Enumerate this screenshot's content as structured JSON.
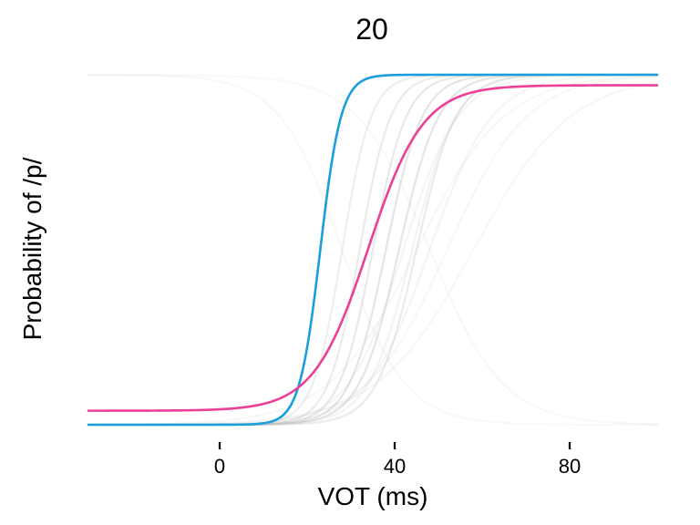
{
  "chart_data": {
    "type": "line",
    "title": "20",
    "xlabel": "VOT (ms)",
    "ylabel": "Probability of /p/",
    "xlim": [
      -30,
      100
    ],
    "ylim": [
      0,
      1
    ],
    "xticks": [
      0,
      40,
      80
    ],
    "yticks": [],
    "grid": false,
    "legend": "none",
    "series": [
      {
        "role": "background",
        "color": "#bdbdbd",
        "opacity": 0.1,
        "lower": 0.0,
        "upper": 1.0,
        "midpoint": 28,
        "slope": -0.14
      },
      {
        "role": "background",
        "color": "#bdbdbd",
        "opacity": 0.1,
        "lower": 0.0,
        "upper": 1.0,
        "midpoint": 48,
        "slope": -0.12
      },
      {
        "role": "background",
        "color": "#bdbdbd",
        "opacity": 0.12,
        "lower": 0.0,
        "upper": 1.0,
        "midpoint": 45,
        "slope": 0.1
      },
      {
        "role": "background",
        "color": "#bdbdbd",
        "opacity": 0.12,
        "lower": 0.0,
        "upper": 1.0,
        "midpoint": 52,
        "slope": 0.11
      },
      {
        "role": "background",
        "color": "#bdbdbd",
        "opacity": 0.12,
        "lower": 0.0,
        "upper": 1.0,
        "midpoint": 58,
        "slope": 0.09
      },
      {
        "role": "background",
        "color": "#bdbdbd",
        "opacity": 0.15,
        "lower": 0.0,
        "upper": 1.0,
        "midpoint": 42,
        "slope": 0.16
      },
      {
        "role": "background",
        "color": "#bdbdbd",
        "opacity": 0.15,
        "lower": 0.0,
        "upper": 1.0,
        "midpoint": 48,
        "slope": 0.14
      },
      {
        "role": "background",
        "color": "#bdbdbd",
        "opacity": 0.18,
        "lower": 0.0,
        "upper": 1.0,
        "midpoint": 44,
        "slope": 0.2
      },
      {
        "role": "background",
        "color": "#bdbdbd",
        "opacity": 0.25,
        "lower": 0.0,
        "upper": 1.0,
        "midpoint": 28,
        "slope": 0.3
      },
      {
        "role": "background",
        "color": "#bdbdbd",
        "opacity": 0.3,
        "lower": 0.0,
        "upper": 1.0,
        "midpoint": 32,
        "slope": 0.28
      },
      {
        "role": "background",
        "color": "#bdbdbd",
        "opacity": 0.35,
        "lower": 0.0,
        "upper": 1.0,
        "midpoint": 35,
        "slope": 0.26
      },
      {
        "role": "background",
        "color": "#bdbdbd",
        "opacity": 0.4,
        "lower": 0.0,
        "upper": 1.0,
        "midpoint": 38,
        "slope": 0.24
      },
      {
        "role": "background",
        "color": "#bdbdbd",
        "opacity": 0.4,
        "lower": 0.0,
        "upper": 1.0,
        "midpoint": 41,
        "slope": 0.22
      },
      {
        "role": "background",
        "color": "#bdbdbd",
        "opacity": 0.3,
        "lower": 0.0,
        "upper": 1.0,
        "midpoint": 45,
        "slope": 0.22
      },
      {
        "role": "highlight",
        "color": "#1a9fdb",
        "opacity": 1.0,
        "lower": 0.0,
        "upper": 1.0,
        "midpoint": 23,
        "slope": 0.42
      },
      {
        "role": "highlight",
        "color": "#ec3f96",
        "opacity": 1.0,
        "lower": 0.04,
        "upper": 0.97,
        "midpoint": 34,
        "slope": 0.16
      }
    ]
  }
}
